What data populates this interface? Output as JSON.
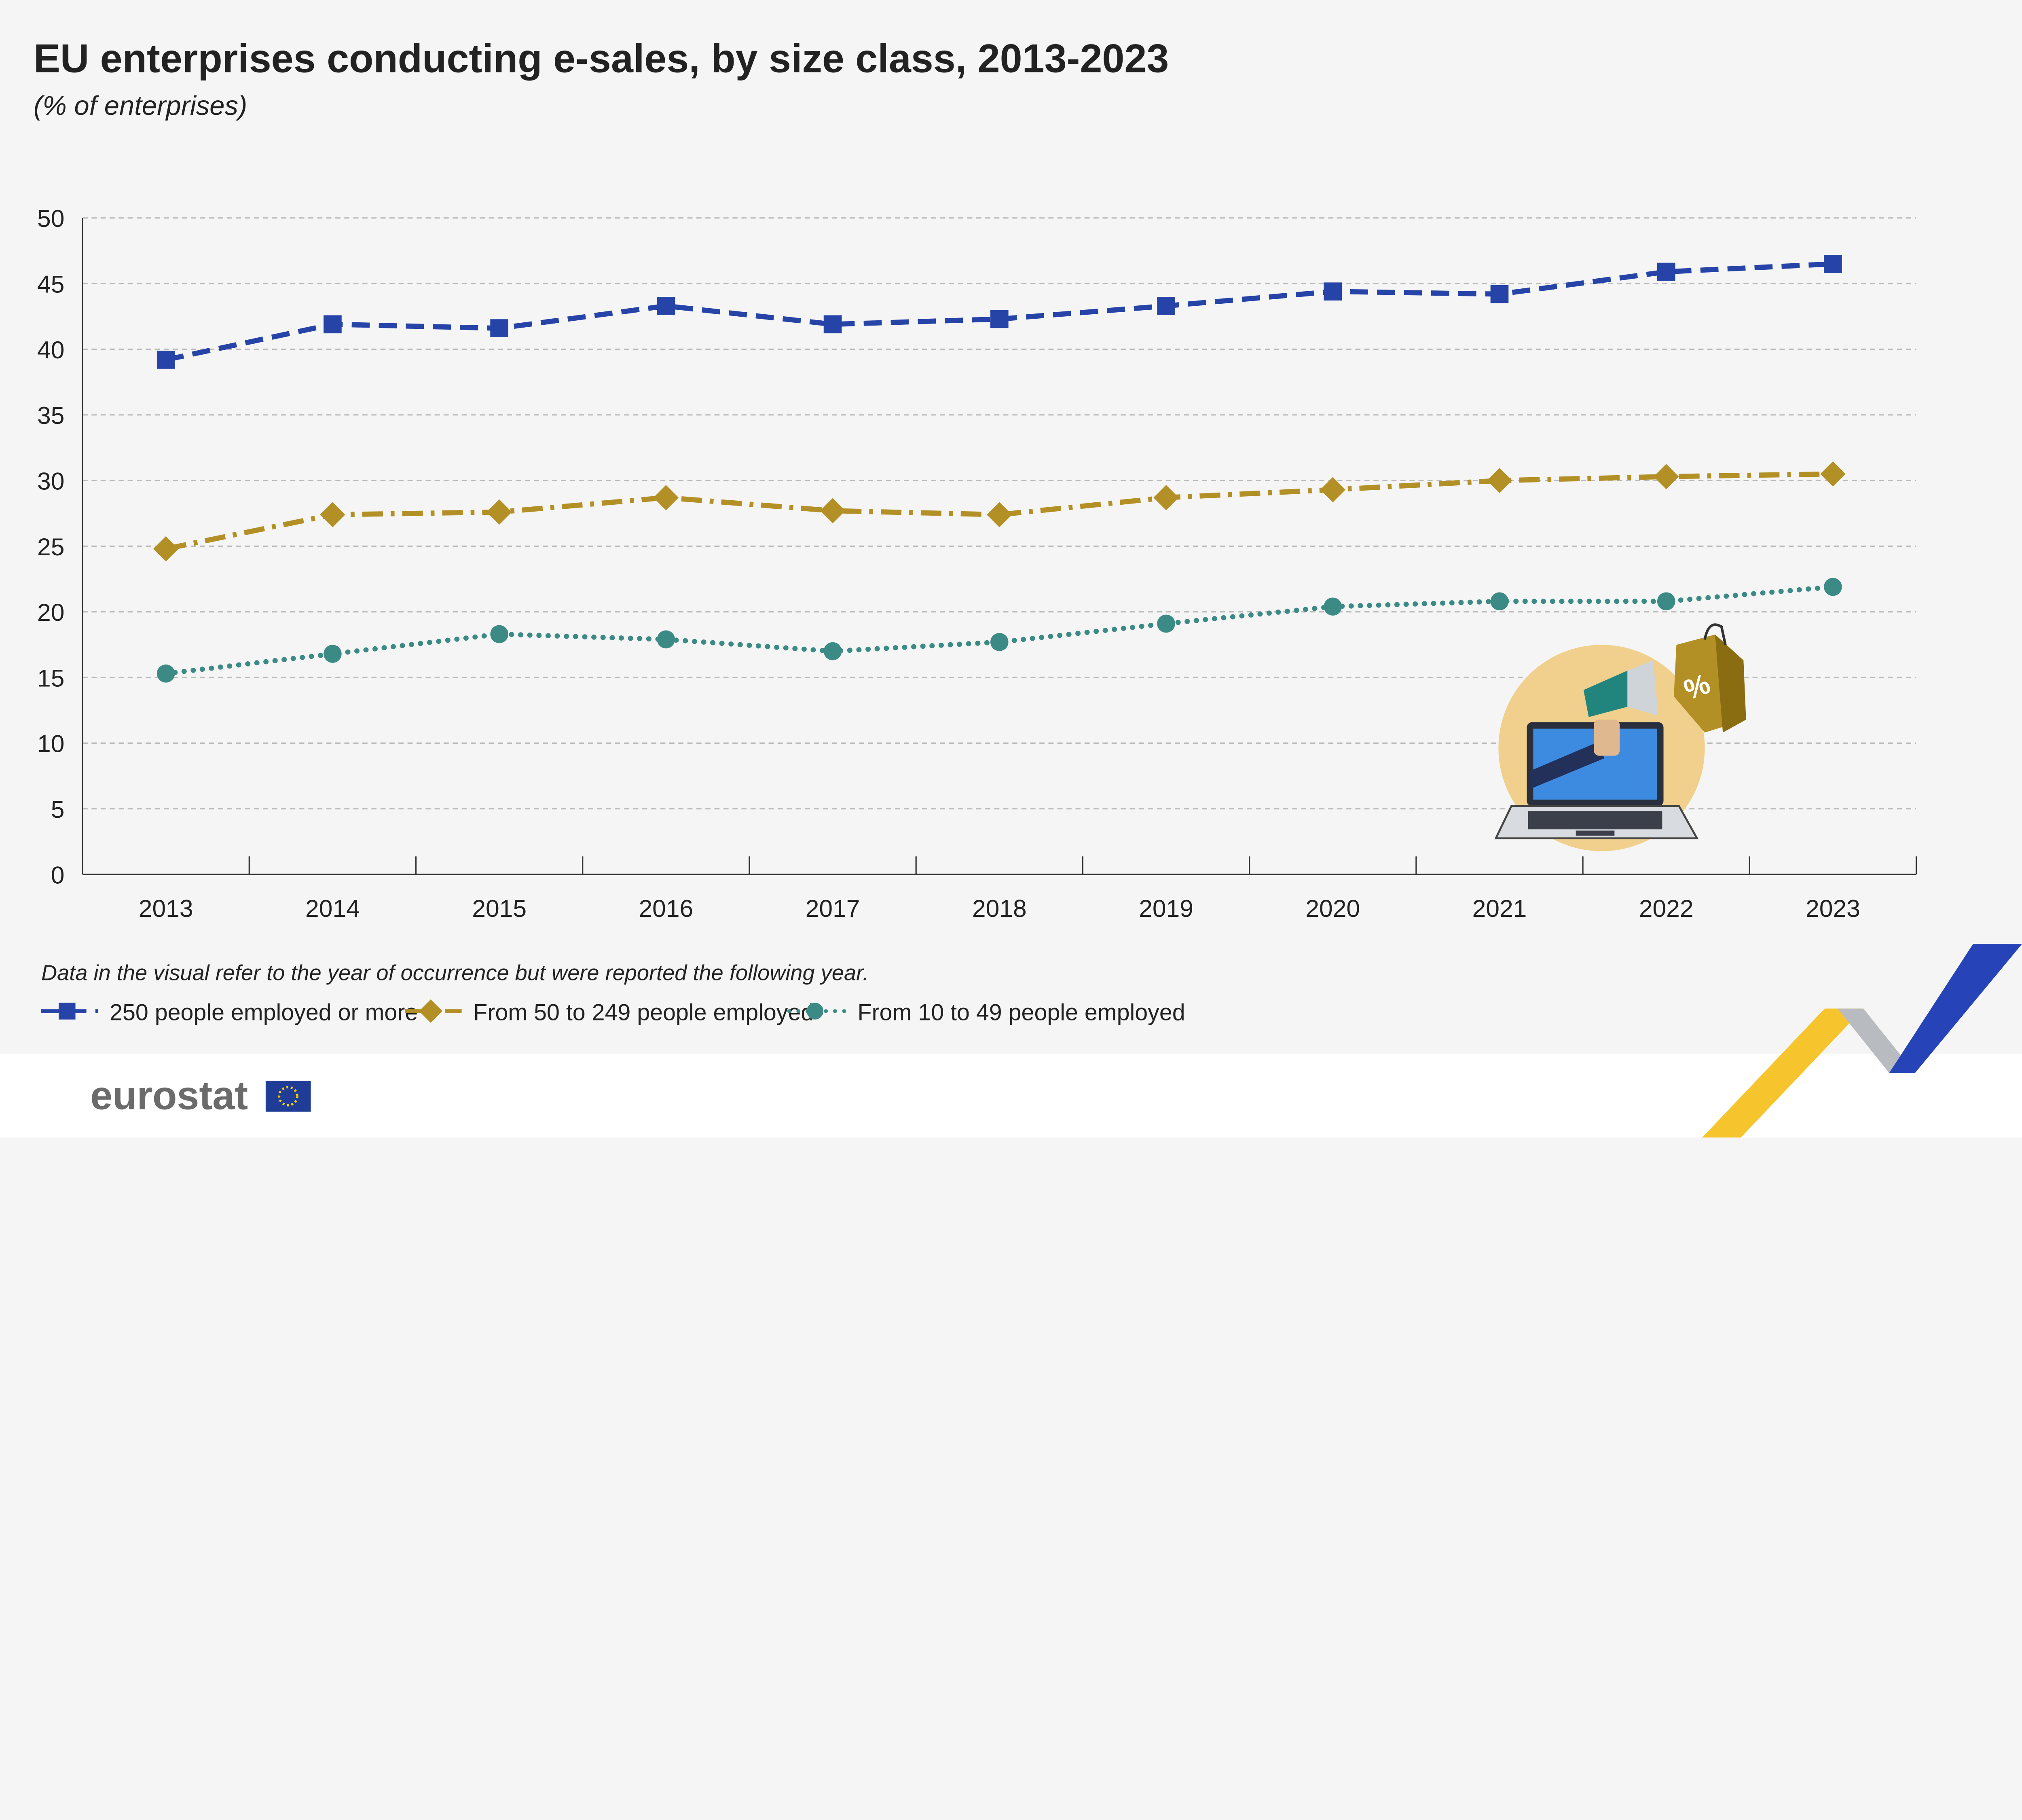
{
  "title": "EU enterprises conducting e-sales, by size class, 2013-2023",
  "subtitle": "(% of enterprises)",
  "note": "Data in the visual refer to the year of occurrence but were reported the following year.",
  "logo": "eurostat",
  "colors": {
    "series1": "#2644a8",
    "series2": "#b39025",
    "series3": "#3b8a85",
    "background": "#f5f5f5"
  },
  "chart_data": {
    "type": "line",
    "title": "EU enterprises conducting e-sales, by size class, 2013-2023",
    "ylabel": "(% of enterprises)",
    "x": [
      "2013",
      "2014",
      "2015",
      "2016",
      "2017",
      "2018",
      "2019",
      "2020",
      "2021",
      "2022",
      "2023"
    ],
    "ylim": [
      0,
      50
    ],
    "yticks": [
      0,
      5,
      10,
      15,
      20,
      25,
      30,
      35,
      40,
      45,
      50
    ],
    "grid": true,
    "legend": "bottom-left",
    "series": [
      {
        "name": "250 people employed or more",
        "marker": "square",
        "line": "dashed",
        "color": "#2644a8",
        "values": [
          39.2,
          41.9,
          41.6,
          43.3,
          41.9,
          42.3,
          43.3,
          44.4,
          44.2,
          45.9,
          46.5
        ]
      },
      {
        "name": "From 50 to 249 people employed",
        "marker": "diamond",
        "line": "dash-dot",
        "color": "#b39025",
        "values": [
          24.8,
          27.4,
          27.6,
          28.7,
          27.7,
          27.4,
          28.7,
          29.3,
          30.0,
          30.3,
          30.5
        ]
      },
      {
        "name": "From 10 to 49 people employed",
        "marker": "circle",
        "line": "dotted",
        "color": "#3b8a85",
        "values": [
          15.3,
          16.8,
          18.3,
          17.9,
          17.0,
          17.7,
          19.1,
          20.4,
          20.8,
          20.8,
          21.9
        ]
      }
    ]
  }
}
